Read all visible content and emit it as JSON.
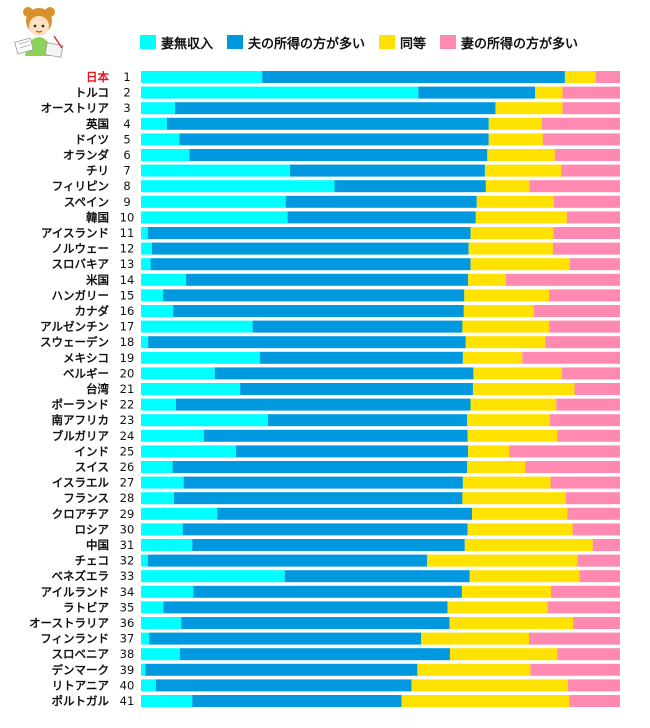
{
  "colors": {
    "wife_no_income": "#00FFFF",
    "husband_higher": "#0099E0",
    "equal": "#FFE200",
    "wife_higher": "#FF89B0",
    "highlight_label": "#E8141E"
  },
  "legend": [
    {
      "label": "妻無収入",
      "color": "#00FFFF"
    },
    {
      "label": "夫の所得の方が多い",
      "color": "#0099E0"
    },
    {
      "label": "同等",
      "color": "#FFE200"
    },
    {
      "label": "妻の所得の方が多い",
      "color": "#FF89B0"
    }
  ],
  "chart_data": {
    "type": "bar",
    "orientation": "horizontal",
    "stacked": true,
    "xlim": [
      0,
      100
    ],
    "grid": false,
    "legend_position": "top",
    "highlight": "日本",
    "categories": [
      "日本",
      "トルコ",
      "オーストリア",
      "英国",
      "ドイツ",
      "オランダ",
      "チリ",
      "フィリピン",
      "スペイン",
      "韓国",
      "アイスランド",
      "ノルウェー",
      "スロバキア",
      "米国",
      "ハンガリー",
      "カナダ",
      "アルゼンチン",
      "スウェーデン",
      "メキシコ",
      "ベルギー",
      "台湾",
      "ポーランド",
      "南アフリカ",
      "ブルガリア",
      "インド",
      "スイス",
      "イスラエル",
      "フランス",
      "クロアチア",
      "ロシア",
      "中国",
      "チェコ",
      "ベネズエラ",
      "アイルランド",
      "ラトビア",
      "オーストラリア",
      "フィンランド",
      "スロベニア",
      "デンマーク",
      "リトアニア",
      "ポルトガル"
    ],
    "ranks": [
      "1",
      "2",
      "3",
      "4",
      "5",
      "6",
      "7",
      "8",
      "9",
      "10",
      "11",
      "12",
      "13",
      "14",
      "15",
      "16",
      "17",
      "18",
      "19",
      "20",
      "21",
      "22",
      "23",
      "24",
      "25",
      "26",
      "27",
      "28",
      "29",
      "30",
      "31",
      "32",
      "33",
      "34",
      "35",
      "36",
      "37",
      "38",
      "39",
      "40",
      "41"
    ],
    "series": [
      {
        "name": "妻無収入",
        "values": [
          25.3,
          57.9,
          7.1,
          5.4,
          8.0,
          10.1,
          31.1,
          40.4,
          30.2,
          30.6,
          1.4,
          2.3,
          2.0,
          9.4,
          4.6,
          6.7,
          23.3,
          1.5,
          24.8,
          15.4,
          20.7,
          7.3,
          26.5,
          13.1,
          19.8,
          6.6,
          8.9,
          6.9,
          15.9,
          8.7,
          10.7,
          1.4,
          30.0,
          10.9,
          4.7,
          8.4,
          1.7,
          8.1,
          0.9,
          3.1,
          10.7
        ]
      },
      {
        "name": "夫の所得の方が多い",
        "values": [
          63.2,
          24.4,
          66.9,
          67.2,
          64.6,
          62.2,
          40.7,
          31.6,
          39.9,
          39.3,
          67.4,
          66.1,
          66.8,
          58.9,
          62.9,
          60.7,
          43.8,
          66.3,
          42.4,
          54.0,
          48.6,
          61.5,
          41.6,
          55.1,
          48.5,
          61.5,
          58.3,
          60.2,
          53.2,
          59.5,
          56.9,
          58.3,
          38.6,
          56.1,
          59.3,
          56.0,
          56.8,
          56.4,
          56.8,
          53.4,
          43.7
        ]
      },
      {
        "name": "同等",
        "values": [
          6.4,
          5.7,
          14.0,
          11.1,
          11.3,
          14.1,
          15.9,
          9.1,
          16.1,
          19.0,
          17.3,
          17.6,
          20.7,
          7.9,
          17.7,
          14.6,
          18.1,
          16.6,
          12.4,
          18.5,
          21.2,
          17.9,
          17.3,
          18.7,
          8.6,
          12.1,
          18.3,
          21.6,
          19.9,
          21.9,
          26.7,
          31.4,
          22.9,
          18.6,
          20.9,
          25.8,
          22.5,
          22.4,
          23.6,
          32.6,
          35.0
        ]
      },
      {
        "name": "妻の所得の方が多い",
        "values": [
          5.1,
          12.0,
          12.0,
          16.3,
          16.1,
          13.6,
          12.3,
          18.9,
          13.8,
          11.1,
          13.9,
          14.0,
          10.5,
          23.8,
          14.8,
          18.0,
          14.8,
          15.6,
          20.4,
          12.1,
          9.5,
          13.3,
          14.6,
          13.1,
          23.1,
          19.8,
          14.5,
          11.3,
          11.0,
          9.9,
          5.7,
          8.9,
          8.5,
          14.4,
          15.1,
          9.8,
          19.0,
          13.1,
          18.7,
          10.9,
          10.6
        ]
      }
    ]
  }
}
